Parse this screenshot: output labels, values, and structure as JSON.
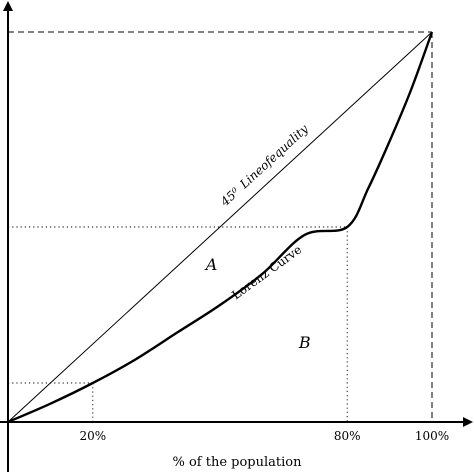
{
  "chart_data": {
    "type": "line",
    "xlabel": "% of the population",
    "ylabel": "",
    "xlim": [
      0,
      1.05
    ],
    "ylim": [
      0,
      1.05
    ],
    "tick_labels": [
      {
        "value": 0.2,
        "label": "20%"
      },
      {
        "value": 0.8,
        "label": "80%"
      },
      {
        "value": 1.0,
        "label": "100%"
      }
    ],
    "series": [
      {
        "name": "45⁰ Lineofequality",
        "label_lines": [
          "45⁰",
          "Lineofequality"
        ],
        "x": [
          0,
          1
        ],
        "y": [
          0,
          1
        ]
      },
      {
        "name": "Lorenz Curve",
        "x": [
          0,
          0.1,
          0.2,
          0.3,
          0.4,
          0.5,
          0.6,
          0.7,
          0.8,
          0.85,
          0.9,
          0.95,
          1.0
        ],
        "y": [
          0,
          0.047,
          0.1,
          0.16,
          0.23,
          0.3,
          0.38,
          0.48,
          0.5,
          0.6,
          0.72,
          0.85,
          1.0
        ]
      }
    ],
    "guides": [
      {
        "style": "dotted",
        "x": 0.2,
        "y": 0.1
      },
      {
        "style": "dotted",
        "x": 0.8,
        "y": 0.5
      },
      {
        "style": "dashed",
        "x": 1.0,
        "y": 1.0
      }
    ],
    "region_labels": [
      {
        "label": "A",
        "x": 0.48,
        "y": 0.39
      },
      {
        "label": "B",
        "x": 0.7,
        "y": 0.19
      }
    ],
    "grid": false
  }
}
